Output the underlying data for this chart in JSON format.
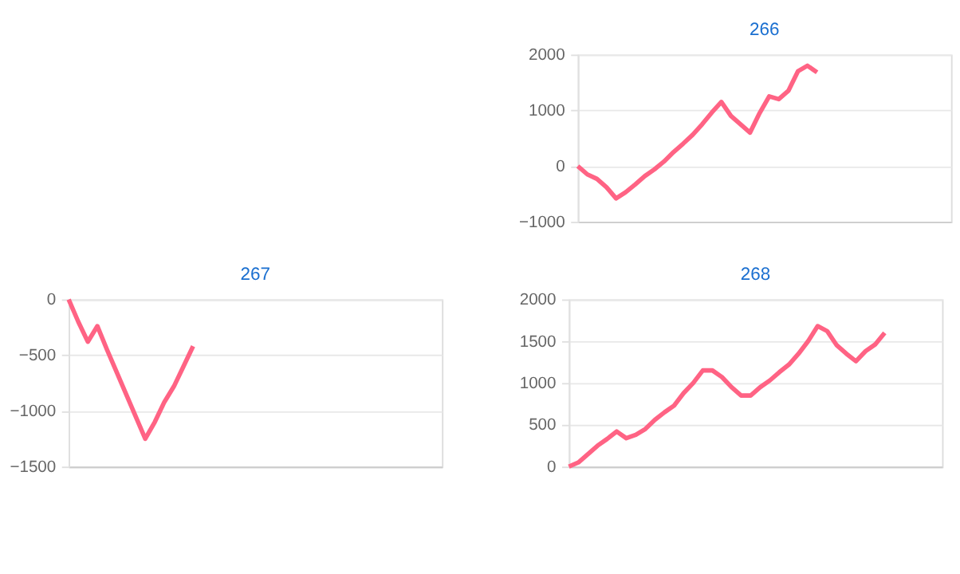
{
  "chart_data": [
    {
      "type": "line",
      "title": "266",
      "categories": [
        null,
        null,
        null,
        null,
        null,
        null,
        null,
        null,
        null,
        null,
        null,
        null,
        null,
        null,
        null,
        null,
        null,
        null,
        null,
        null,
        null,
        null,
        null,
        null,
        null,
        null,
        null,
        null,
        null,
        null,
        null,
        null,
        null,
        null,
        null,
        null,
        null,
        null,
        null,
        null
      ],
      "series": [
        {
          "color": "#ff6384",
          "values": [
            0,
            -150,
            -230,
            -380,
            -580,
            -470,
            -330,
            -180,
            -60,
            80,
            250,
            400,
            560,
            750,
            960,
            1150,
            900,
            750,
            600,
            950,
            1250,
            1200,
            1350,
            1700,
            1800,
            1680,
            null,
            null,
            null,
            null,
            null,
            null,
            null,
            null,
            null,
            null,
            null,
            null,
            null,
            null
          ]
        }
      ],
      "ylim": [
        -1000,
        2000
      ],
      "yticks": [
        -1000,
        0,
        1000,
        2000
      ],
      "grid": "y",
      "legend": false,
      "tick_labels": "y",
      "marker": "none",
      "line_style": "solid"
    },
    {
      "type": "line",
      "title": "267",
      "categories": [
        null,
        null,
        null,
        null,
        null,
        null,
        null,
        null,
        null,
        null,
        null,
        null,
        null,
        null,
        null,
        null,
        null,
        null,
        null,
        null,
        null,
        null,
        null,
        null,
        null,
        null,
        null,
        null,
        null,
        null,
        null,
        null,
        null,
        null,
        null,
        null,
        null,
        null,
        null,
        null
      ],
      "series": [
        {
          "color": "#ff6384",
          "values": [
            0,
            -200,
            -380,
            -240,
            -450,
            -650,
            -850,
            -1050,
            -1250,
            -1100,
            -920,
            -780,
            -600,
            -420,
            null,
            null,
            null,
            null,
            null,
            null,
            null,
            null,
            null,
            null,
            null,
            null,
            null,
            null,
            null,
            null,
            null,
            null,
            null,
            null,
            null,
            null,
            null,
            null,
            null,
            null
          ]
        }
      ],
      "ylim": [
        -1500,
        0
      ],
      "yticks": [
        -1500,
        -1000,
        -500,
        0
      ],
      "grid": "y",
      "legend": false,
      "tick_labels": "y",
      "marker": "none",
      "line_style": "solid"
    },
    {
      "type": "line",
      "title": "268",
      "categories": [
        null,
        null,
        null,
        null,
        null,
        null,
        null,
        null,
        null,
        null,
        null,
        null,
        null,
        null,
        null,
        null,
        null,
        null,
        null,
        null,
        null,
        null,
        null,
        null,
        null,
        null,
        null,
        null,
        null,
        null,
        null,
        null,
        null,
        null,
        null,
        null,
        null,
        null,
        null,
        null
      ],
      "series": [
        {
          "color": "#ff6384",
          "values": [
            0,
            50,
            150,
            250,
            330,
            420,
            340,
            380,
            450,
            560,
            650,
            730,
            880,
            1000,
            1150,
            1150,
            1070,
            950,
            850,
            850,
            950,
            1030,
            1130,
            1220,
            1350,
            1500,
            1680,
            1620,
            1450,
            1350,
            1260,
            1380,
            1460,
            1600,
            null,
            null,
            null,
            null,
            null,
            null
          ]
        }
      ],
      "ylim": [
        0,
        2000
      ],
      "yticks": [
        0,
        500,
        1000,
        1500,
        2000
      ],
      "grid": "y",
      "legend": false,
      "tick_labels": "y",
      "marker": "none",
      "line_style": "solid"
    }
  ]
}
